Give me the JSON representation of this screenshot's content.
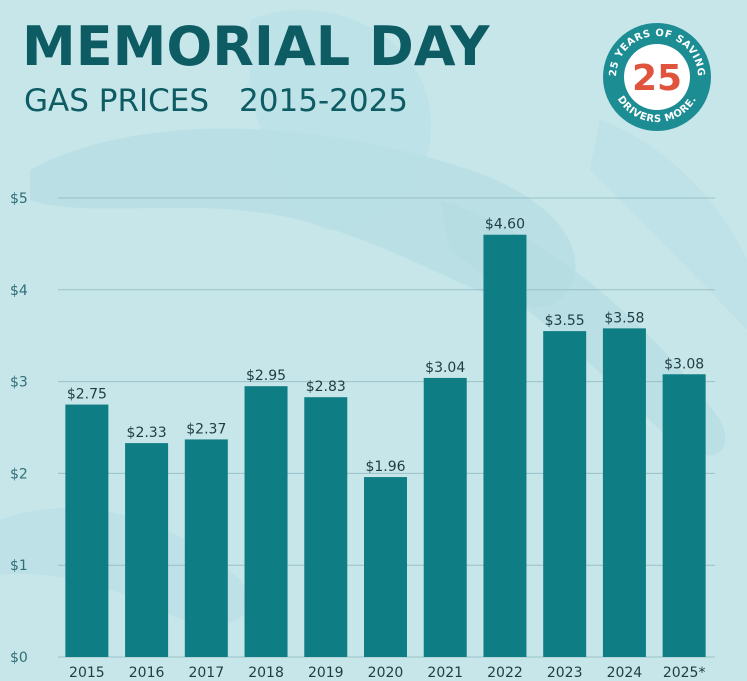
{
  "title": "MEMORIAL DAY",
  "subtitle": "GAS PRICES",
  "subtitle_range": "2015-2025",
  "badge": {
    "number": "25",
    "ring_text_top": "25 YEARS OF SAVING",
    "ring_text_bottom": "DRIVERS MORE."
  },
  "colors": {
    "background": "#c6e6ea",
    "bar": "#0f7d84",
    "title": "#0d5b63",
    "badge_ring": "#1d8d94",
    "badge_number_accent": "#e0533c"
  },
  "chart_data": {
    "type": "bar",
    "categories": [
      "2015",
      "2016",
      "2017",
      "2018",
      "2019",
      "2020",
      "2021",
      "2022",
      "2023",
      "2024",
      "2025*"
    ],
    "values": [
      2.75,
      2.33,
      2.37,
      2.95,
      2.83,
      1.96,
      3.04,
      4.6,
      3.55,
      3.58,
      3.08
    ],
    "value_labels": [
      "$2.75",
      "$2.33",
      "$2.37",
      "$2.95",
      "$2.83",
      "$1.96",
      "$3.04",
      "$4.60",
      "$3.55",
      "$3.58",
      "$3.08"
    ],
    "y_ticks": [
      0,
      1,
      2,
      3,
      4,
      5
    ],
    "y_tick_labels": [
      "$0",
      "$1",
      "$2",
      "$3",
      "$4",
      "$5"
    ],
    "ylim": [
      0,
      5
    ],
    "grid": true,
    "legend": "none"
  }
}
